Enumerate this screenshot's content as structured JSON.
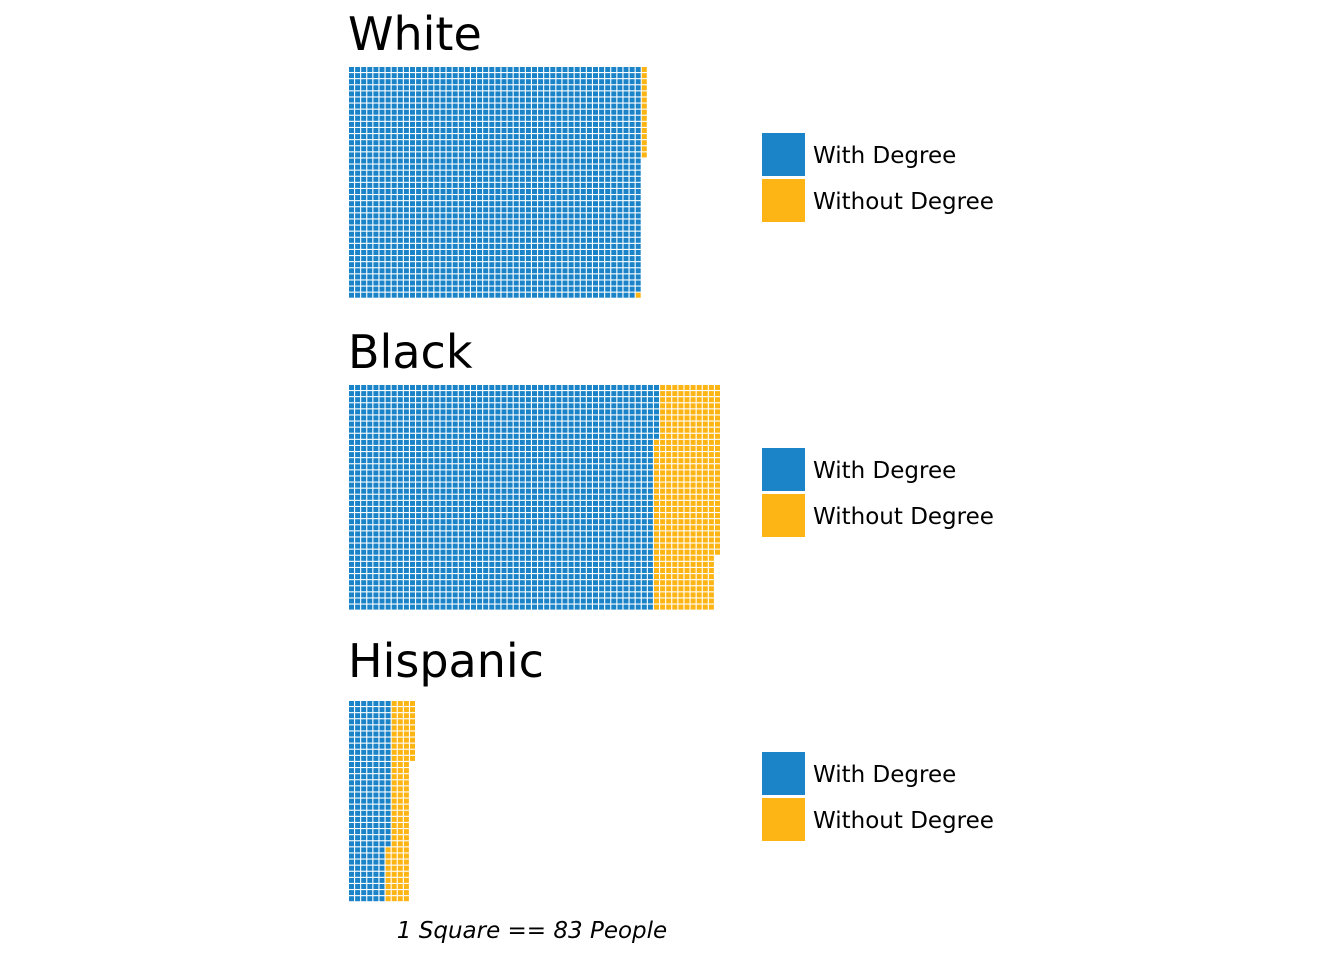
{
  "chart_data": {
    "type": "waffle",
    "caption": "1 Square == 83 People",
    "legend": [
      {
        "label": "With Degree",
        "color": "#1B84C9"
      },
      {
        "label": "Without Degree",
        "color": "#FDB515"
      }
    ],
    "panels": [
      {
        "title": "White",
        "rows": 38,
        "with_degree": 1823,
        "without_degree": 16
      },
      {
        "title": "Black",
        "rows": 37,
        "with_degree": 1859,
        "without_degree": 389
      },
      {
        "title": "Hispanic",
        "rows": 33,
        "with_degree": 222,
        "without_degree": 118
      }
    ]
  }
}
